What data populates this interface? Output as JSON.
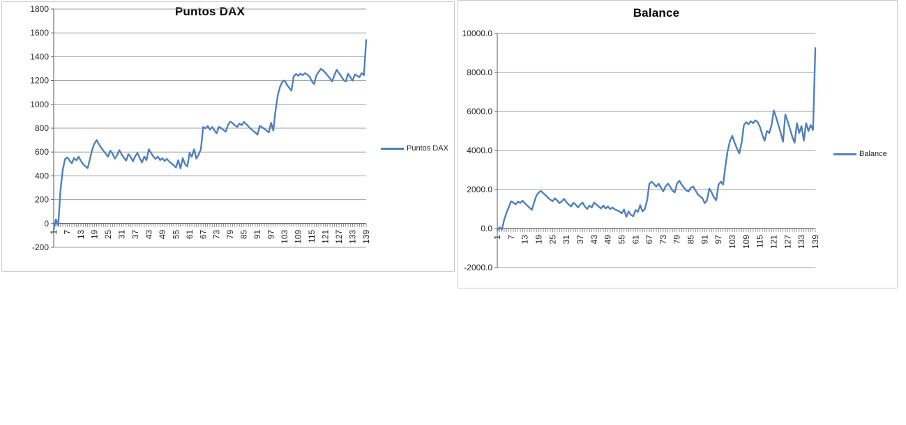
{
  "page": {
    "background": "#ffffff"
  },
  "chart_data": [
    {
      "type": "line",
      "title": "Puntos DAX",
      "legend_label": "Puntos DAX",
      "legend_position": "right",
      "line_color": "#4F81BD",
      "grid": "horizontal",
      "y_min": -200,
      "y_max": 1800,
      "y_step": 200,
      "y_tick_labels": [
        "1800",
        "1600",
        "1400",
        "1200",
        "1000",
        "800",
        "600",
        "400",
        "200",
        "0",
        "-200"
      ],
      "x_label_interval": 6,
      "x_tick_labels": [
        "1",
        "7",
        "13",
        "19",
        "25",
        "31",
        "37",
        "43",
        "49",
        "55",
        "61",
        "67",
        "73",
        "79",
        "85",
        "91",
        "97",
        "103",
        "109",
        "115",
        "121",
        "127",
        "133",
        "139"
      ],
      "values": [
        -50,
        35,
        -15,
        280,
        450,
        540,
        555,
        530,
        505,
        550,
        530,
        560,
        525,
        498,
        480,
        465,
        540,
        620,
        672,
        700,
        665,
        635,
        610,
        585,
        560,
        612,
        585,
        545,
        572,
        615,
        580,
        552,
        528,
        582,
        558,
        522,
        565,
        592,
        548,
        512,
        562,
        532,
        622,
        592,
        562,
        542,
        562,
        532,
        548,
        525,
        542,
        520,
        505,
        490,
        470,
        532,
        462,
        548,
        498,
        478,
        592,
        560,
        622,
        545,
        578,
        622,
        810,
        798,
        818,
        788,
        810,
        780,
        758,
        812,
        800,
        785,
        770,
        830,
        855,
        842,
        825,
        810,
        840,
        825,
        852,
        835,
        815,
        795,
        780,
        765,
        745,
        820,
        808,
        795,
        780,
        765,
        845,
        780,
        950,
        1080,
        1150,
        1190,
        1200,
        1165,
        1140,
        1115,
        1235,
        1255,
        1240,
        1258,
        1245,
        1262,
        1250,
        1232,
        1195,
        1170,
        1242,
        1272,
        1298,
        1285,
        1265,
        1242,
        1218,
        1192,
        1248,
        1290,
        1262,
        1235,
        1205,
        1192,
        1258,
        1228,
        1198,
        1252,
        1240,
        1228,
        1262,
        1245,
        1540
      ]
    },
    {
      "type": "line",
      "title": "Balance",
      "legend_label": "Balance",
      "legend_position": "right",
      "line_color": "#4F81BD",
      "grid": "horizontal",
      "y_min": -2000,
      "y_max": 10000,
      "y_step": 2000,
      "y_tick_labels": [
        "10000.0",
        "8000.0",
        "6000.0",
        "4000.0",
        "2000.0",
        "0.0",
        "-2000.0"
      ],
      "x_label_interval": 6,
      "x_tick_labels": [
        "1",
        "7",
        "13",
        "19",
        "25",
        "31",
        "37",
        "43",
        "49",
        "55",
        "61",
        "67",
        "73",
        "79",
        "85",
        "91",
        "97",
        "103",
        "109",
        "115",
        "121",
        "127",
        "133",
        "139"
      ],
      "values": [
        -100,
        60,
        -50,
        450,
        800,
        1100,
        1400,
        1330,
        1240,
        1380,
        1310,
        1430,
        1290,
        1180,
        1060,
        960,
        1350,
        1700,
        1850,
        1920,
        1800,
        1700,
        1580,
        1480,
        1400,
        1550,
        1440,
        1300,
        1400,
        1520,
        1350,
        1230,
        1130,
        1320,
        1230,
        1080,
        1230,
        1330,
        1130,
        1000,
        1180,
        1080,
        1330,
        1230,
        1130,
        1030,
        1180,
        1030,
        1130,
        1000,
        1080,
        980,
        930,
        880,
        780,
        980,
        600,
        880,
        700,
        630,
        950,
        850,
        1200,
        880,
        1000,
        1450,
        2300,
        2400,
        2280,
        2150,
        2300,
        2100,
        1900,
        2150,
        2300,
        2150,
        1950,
        1850,
        2300,
        2450,
        2250,
        2100,
        1950,
        1900,
        2100,
        2150,
        1950,
        1750,
        1650,
        1550,
        1300,
        1450,
        2050,
        1850,
        1600,
        1450,
        2250,
        2400,
        2250,
        3200,
        4000,
        4500,
        4750,
        4400,
        4100,
        3850,
        4400,
        5300,
        5450,
        5350,
        5500,
        5400,
        5550,
        5450,
        5200,
        4800,
        4500,
        5000,
        4900,
        5300,
        6050,
        5700,
        5300,
        4900,
        4450,
        5850,
        5500,
        5100,
        4700,
        4400,
        5400,
        4900,
        5250,
        4500,
        5400,
        5000,
        5300,
        5050,
        9250
      ]
    }
  ]
}
